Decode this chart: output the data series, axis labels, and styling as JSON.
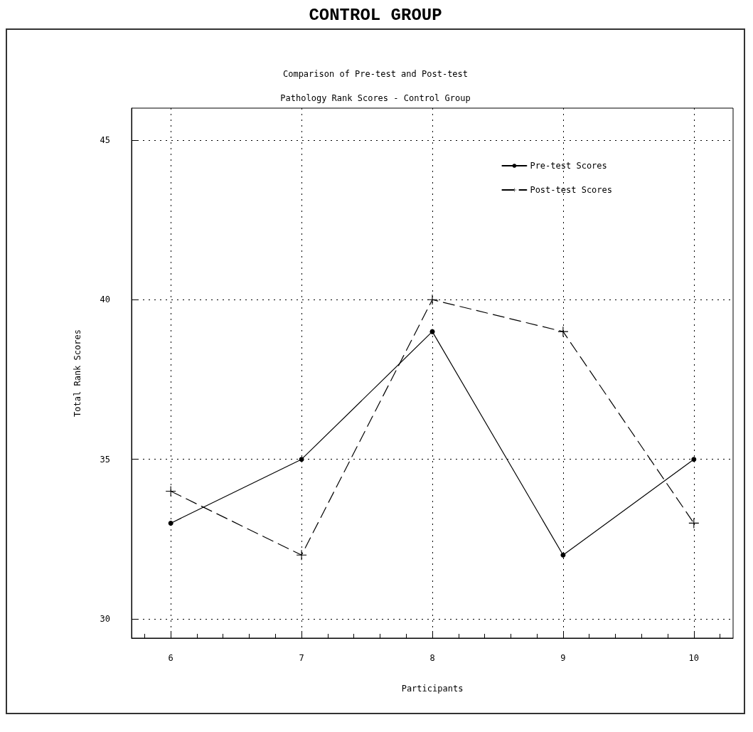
{
  "chart_data": {
    "type": "line",
    "title": "CONTROL GROUP",
    "subtitle": "Comparison of Pre-test and Post-test\nPathology Rank Scores - Control Group",
    "xlabel": "Participants",
    "ylabel": "Total Rank Scores",
    "x": [
      6,
      7,
      8,
      9,
      10
    ],
    "series": [
      {
        "name": "Pre-test Scores",
        "color": "#000000",
        "marker": "circle",
        "line_style": "solid",
        "values": [
          33,
          35,
          39,
          32,
          35
        ]
      },
      {
        "name": "Post-test Scores",
        "color": "#000000",
        "marker": "cross",
        "line_style": "dashed",
        "values": [
          34,
          32,
          40,
          39,
          33
        ]
      }
    ],
    "xlim": [
      5.7,
      10.3
    ],
    "xticks": [
      6,
      7,
      8,
      9,
      10
    ],
    "ylim": [
      29.4,
      46
    ],
    "yticks": [
      30,
      35,
      40,
      45
    ],
    "grid": true,
    "legend": "top right"
  }
}
